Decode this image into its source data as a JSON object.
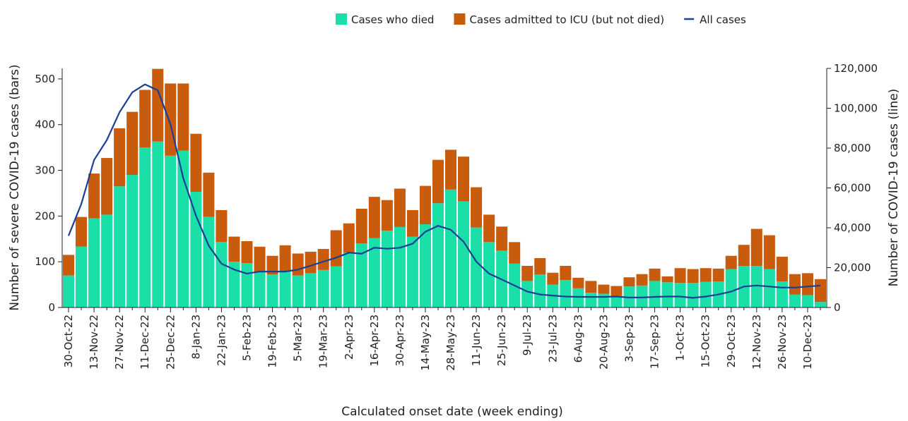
{
  "chart_data": {
    "type": "bar",
    "categories": [
      "30-Oct-22",
      null,
      "13-Nov-22",
      null,
      "27-Nov-22",
      null,
      "11-Dec-22",
      null,
      "25-Dec-22",
      null,
      "8-Jan-23",
      null,
      "22-Jan-23",
      null,
      "5-Feb-23",
      null,
      "19-Feb-23",
      null,
      "5-Mar-23",
      null,
      "19-Mar-23",
      null,
      "2-Apr-23",
      null,
      "16-Apr-23",
      null,
      "30-Apr-23",
      null,
      "14-May-23",
      null,
      "28-May-23",
      null,
      "11-Jun-23",
      null,
      "25-Jun-23",
      null,
      "9-Jul-23",
      null,
      "23-Jul-23",
      null,
      "6-Aug-23",
      null,
      "20-Aug-23",
      null,
      "3-Sep-23",
      null,
      "17-Sep-23",
      null,
      "1-Oct-23",
      null,
      "15-Oct-23",
      null,
      "29-Oct-23",
      null,
      "12-Nov-23",
      null,
      "26-Nov-23",
      null,
      "10-Dec-23",
      null
    ],
    "series": [
      {
        "name": "Cases who died",
        "color": "#1adfa9",
        "values": [
          70,
          133,
          195,
          203,
          265,
          290,
          350,
          363,
          332,
          343,
          253,
          198,
          143,
          100,
          97,
          78,
          72,
          80,
          70,
          75,
          82,
          90,
          120,
          140,
          152,
          168,
          176,
          155,
          182,
          228,
          258,
          232,
          175,
          143,
          124,
          96,
          58,
          72,
          50,
          60,
          42,
          32,
          30,
          25,
          46,
          48,
          58,
          55,
          54,
          54,
          56,
          57,
          84,
          91,
          91,
          84,
          57,
          28,
          27,
          12
        ]
      },
      {
        "name": "Cases admitted to ICU (but not died)",
        "color": "#c95b0c",
        "values": [
          45,
          65,
          98,
          124,
          127,
          138,
          126,
          159,
          158,
          147,
          127,
          97,
          70,
          55,
          48,
          55,
          41,
          56,
          48,
          47,
          46,
          79,
          64,
          76,
          90,
          67,
          84,
          58,
          84,
          95,
          87,
          98,
          88,
          60,
          53,
          47,
          33,
          36,
          26,
          31,
          23,
          26,
          20,
          22,
          20,
          25,
          27,
          13,
          32,
          30,
          30,
          28,
          29,
          46,
          81,
          74,
          54,
          45,
          48,
          50
        ]
      },
      {
        "name": "All cases",
        "color": "#1b3f94",
        "axis": "y2",
        "type": "line",
        "values": [
          36000,
          52000,
          74000,
          84000,
          98000,
          108000,
          112000,
          109000,
          92000,
          65000,
          46000,
          31000,
          22000,
          19000,
          17000,
          18000,
          18000,
          18000,
          19000,
          21000,
          23000,
          25000,
          27500,
          27000,
          30000,
          29500,
          30000,
          32000,
          38000,
          41000,
          39000,
          33000,
          23000,
          17000,
          14000,
          11000,
          8000,
          6500,
          6000,
          5500,
          5300,
          5300,
          5300,
          5500,
          5000,
          5000,
          5300,
          5500,
          5500,
          4800,
          5500,
          6500,
          8000,
          10500,
          11000,
          10500,
          10000,
          10000,
          10500,
          11000
        ]
      }
    ],
    "stacked": true,
    "ylim": [
      0,
      523
    ],
    "yticks": [
      0,
      100,
      200,
      300,
      400,
      500
    ],
    "y2lim": [
      0,
      120000
    ],
    "y2ticks": [
      0,
      {
        "value": 20000,
        "label": "20,000"
      },
      {
        "value": 40000,
        "label": "40,000"
      },
      {
        "value": 60000,
        "label": "60,000"
      },
      {
        "value": 80000,
        "label": "80,000"
      },
      {
        "value": 100000,
        "label": "100,000"
      },
      {
        "value": 120000,
        "label": "120,000"
      }
    ],
    "ylabel": "Number of severe COVID-19 cases (bars)",
    "y2label": "Number of COVID-19 cases (line)",
    "xlabel": "Calculated onset date (week ending)",
    "legend": "top-right"
  }
}
